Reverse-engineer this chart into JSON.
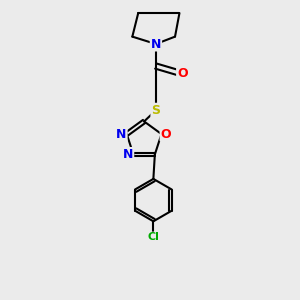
{
  "bg_color": "#ebebeb",
  "atom_colors": {
    "N": "#0000ee",
    "O": "#ff0000",
    "S": "#bbbb00",
    "Cl": "#00aa00",
    "C": "#000000"
  },
  "bond_color": "#000000",
  "bond_width": 1.5,
  "font_size_atoms": 9,
  "font_size_cl": 8
}
